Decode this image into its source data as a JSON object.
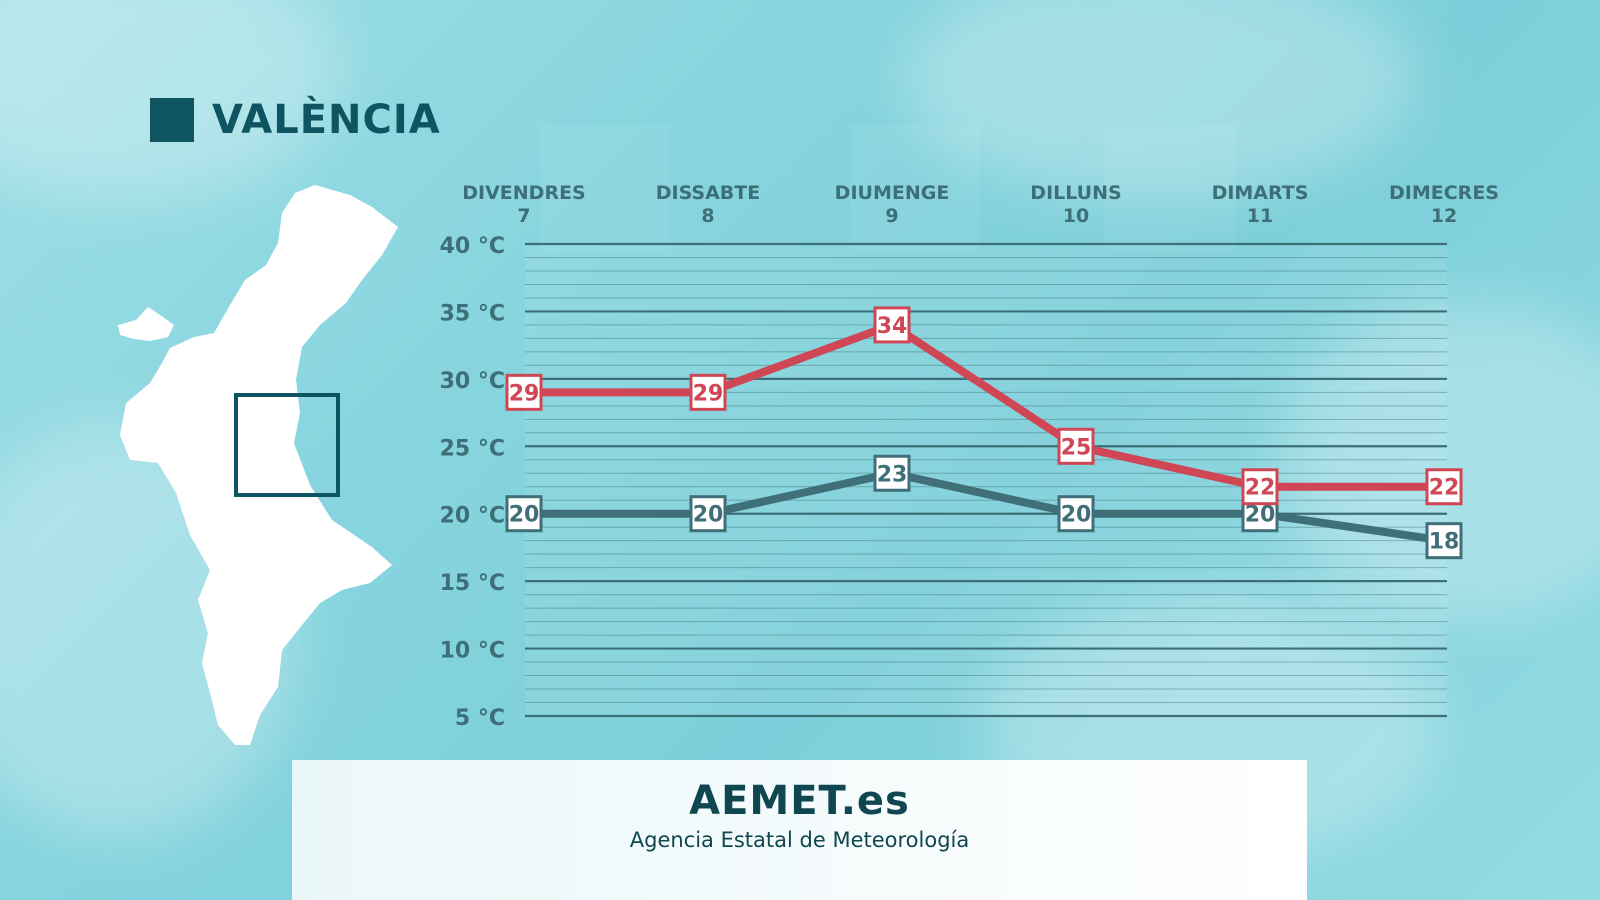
{
  "title": "VALÈNCIA",
  "footer": {
    "brand": "AEMET.es",
    "subtitle": "Agencia Estatal de Meteorología"
  },
  "colors": {
    "max": "#cf4655",
    "min": "#3f6f78",
    "dark": "#0f5561"
  },
  "chart_data": {
    "type": "line",
    "categories": [
      [
        "DIVENDRES",
        "7"
      ],
      [
        "DISSABTE",
        "8"
      ],
      [
        "DIUMENGE",
        "9"
      ],
      [
        "DILLUNS",
        "10"
      ],
      [
        "DIMARTS",
        "11"
      ],
      [
        "DIMECRES",
        "12"
      ]
    ],
    "y_ticks": [
      "40 °C",
      "35 °C",
      "30 °C",
      "25 °C",
      "20 °C",
      "15 °C",
      "10 °C",
      "5 °C"
    ],
    "ylim": [
      5,
      40
    ],
    "grid": true,
    "series": [
      {
        "key": "max",
        "values": [
          29,
          29,
          34,
          25,
          22,
          22
        ]
      },
      {
        "key": "min",
        "values": [
          20,
          20,
          23,
          20,
          20,
          18
        ]
      }
    ]
  }
}
